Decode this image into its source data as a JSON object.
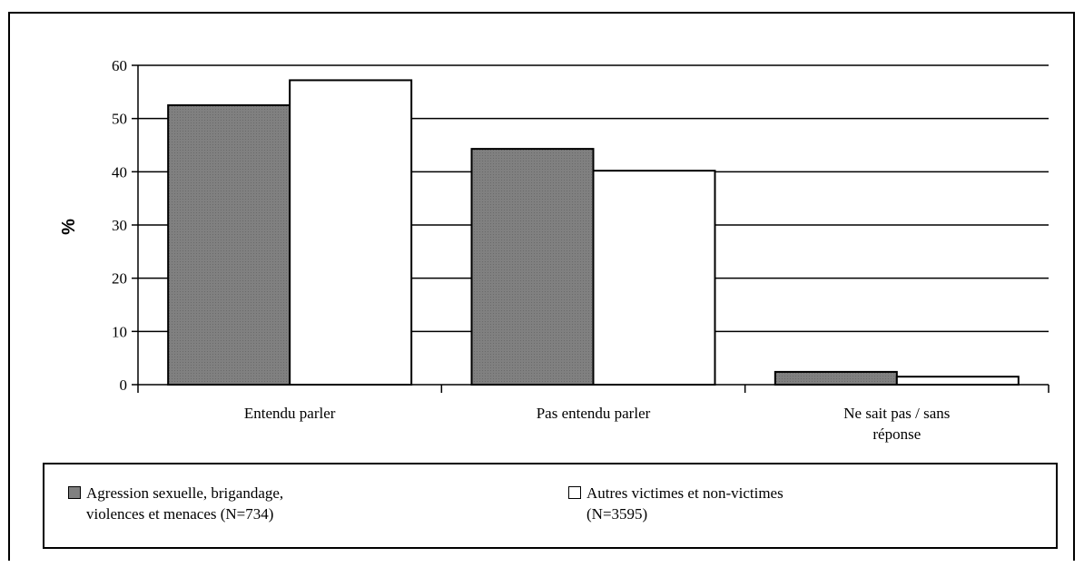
{
  "chart_data": {
    "type": "bar",
    "categories": [
      "Entendu parler",
      "Pas entendu parler",
      "Ne sait pas / sans\nréponse"
    ],
    "series": [
      {
        "name": "Agression sexuelle, brigandage,\nviolences et menaces (N=734)",
        "values": [
          52.5,
          44.3,
          2.4
        ],
        "color": "#808080"
      },
      {
        "name": "Autres victimes et non-victimes\n(N=3595)",
        "values": [
          57.2,
          40.2,
          1.5
        ],
        "color": "#ffffff"
      }
    ],
    "ylabel": "%",
    "xlabel": "",
    "title": "",
    "ylim": [
      0,
      60
    ],
    "yticks": [
      0,
      10,
      20,
      30,
      40,
      50,
      60
    ],
    "grid": true,
    "legend_position": "bottom"
  }
}
